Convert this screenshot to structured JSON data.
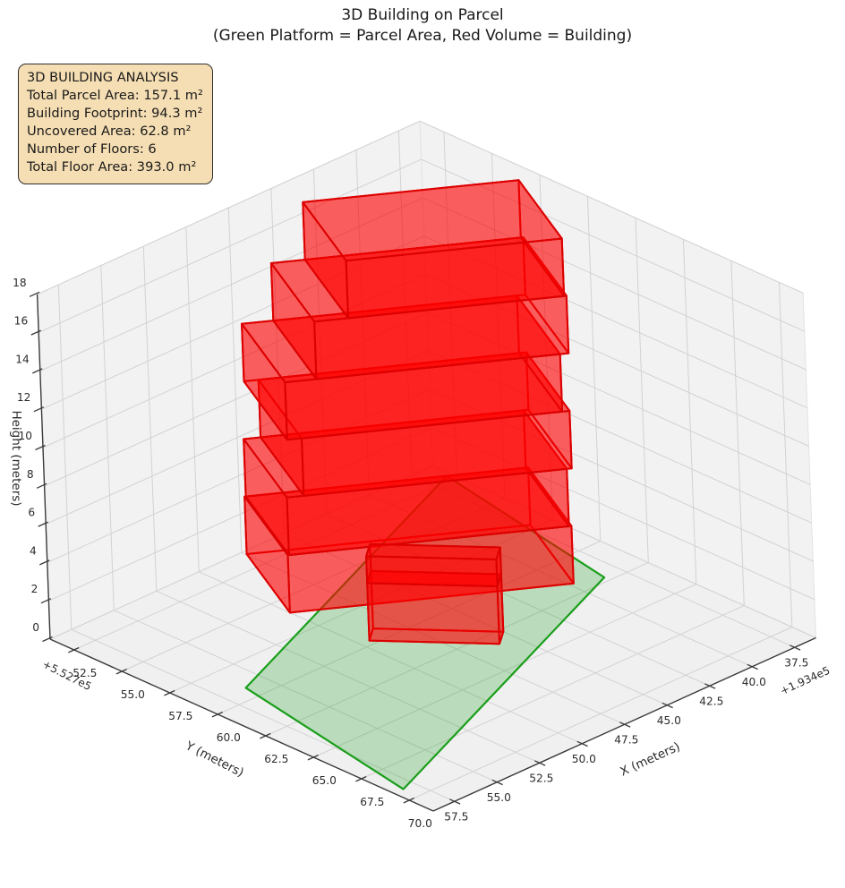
{
  "title": {
    "line1": "3D Building on Parcel",
    "line2": "(Green Platform = Parcel Area, Red Volume = Building)"
  },
  "info_box": {
    "lines": [
      "3D BUILDING ANALYSIS",
      "Total Parcel Area: 157.1 m²",
      "Building Footprint: 94.3 m²",
      "Uncovered Area: 62.8 m²",
      "Number of Floors: 6",
      "Total Floor Area: 393.0 m²"
    ]
  },
  "chart_data": {
    "type": "3d-building-parcel-plot",
    "axes": {
      "x": {
        "label": "X (meters)",
        "offset_text": "+1.934e5",
        "ticks": [
          37.5,
          40.0,
          42.5,
          45.0,
          47.5,
          50.0,
          52.5,
          55.0,
          57.5
        ],
        "range": [
          36.25,
          58.75
        ]
      },
      "y": {
        "label": "Y (meters)",
        "offset_text": "+5.527e5",
        "ticks": [
          52.5,
          55.0,
          57.5,
          60.0,
          62.5,
          65.0,
          67.5,
          70.0
        ],
        "range": [
          51.25,
          71.25
        ]
      },
      "z": {
        "label": "Height (meters)",
        "ticks": [
          0,
          2,
          4,
          6,
          8,
          10,
          12,
          14,
          16,
          18
        ],
        "range": [
          0,
          18
        ]
      }
    },
    "parcel": {
      "area_m2": 157.1,
      "z": 0,
      "polygon": [
        [
          56.2,
          59.2
        ],
        [
          58.2,
          69.2
        ],
        [
          38.5,
          62.2
        ],
        [
          36.5,
          52.2
        ]
      ]
    },
    "building": {
      "footprint_m2": 94.3,
      "num_floors": 6,
      "floor_height_m": 3,
      "total_floor_area_m2": 393.0,
      "base_front_left": [
        50.0,
        56.0
      ],
      "base_front_right": [
        39.8,
        61.75
      ],
      "depth_vector": [
        -2.55,
        -4.52
      ],
      "floor_side_offsets": [
        [
          0,
          0
        ],
        [
          0.05,
          -0.1
        ],
        [
          0.75,
          0.1
        ],
        [
          0.15,
          -0.2
        ],
        [
          1.45,
          0.15
        ],
        [
          2.85,
          0.05
        ]
      ]
    },
    "annex": {
      "front_left": [
        49.5,
        59.7
      ],
      "front_right": [
        45.9,
        63.3
      ],
      "depth_vector": [
        -0.9,
        -0.6
      ],
      "z_segments": [
        [
          0,
          3
        ],
        [
          3,
          4.4
        ]
      ]
    },
    "colors": {
      "building_edge": "#dd0000",
      "building_fill": "rgba(255,0,0,0.38)",
      "parcel_edge": "#1a9e1a",
      "parcel_fill": "rgba(0,150,0,0.22)",
      "pane": "#f2f2f3",
      "pane_floor": "#f0f0f1",
      "grid": "#d2d2d2",
      "axis_line": "#3a3a3a",
      "tick_text": "#2b2b2b",
      "info_bg": "#f5deb3"
    }
  }
}
